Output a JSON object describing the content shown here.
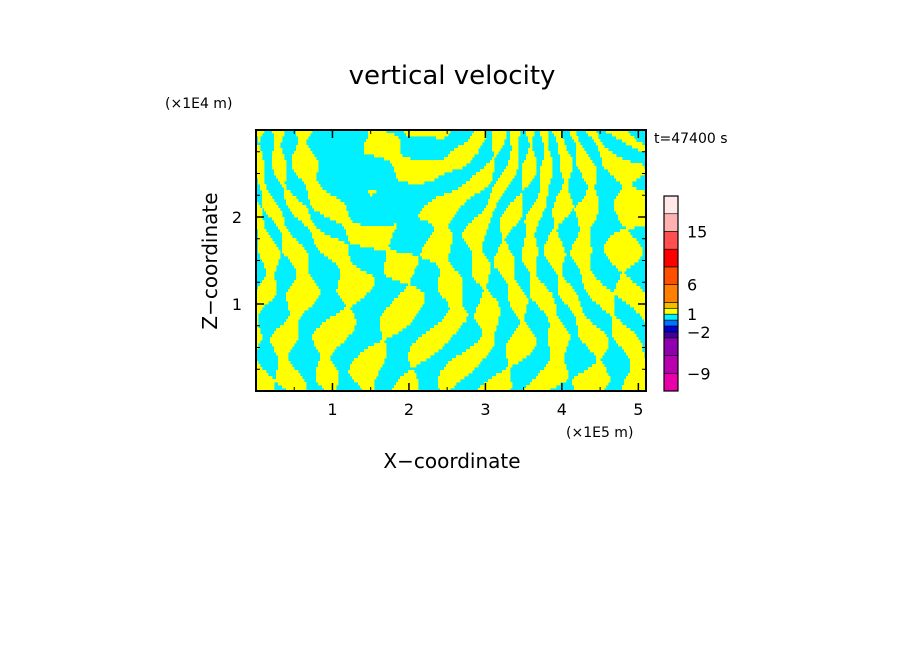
{
  "chart_data": {
    "type": "heatmap",
    "title": "vertical velocity",
    "xlabel": "X−coordinate",
    "ylabel": "Z−coordinate",
    "x_unit_label": "(×1E5 m)",
    "y_unit_label": "(×1E4 m)",
    "time_label": "t=47400 s",
    "xlim": [
      0,
      5.1
    ],
    "ylim": [
      0,
      3.0
    ],
    "xticks": [
      1,
      2,
      3,
      4,
      5
    ],
    "yticks": [
      1,
      2
    ],
    "xtick_labels": [
      "1",
      "2",
      "3",
      "4",
      "5"
    ],
    "ytick_labels": [
      "1",
      "2"
    ],
    "field_colors": {
      "positive": "#ffff00",
      "negative": "#00f0ff"
    },
    "colorbar": {
      "levels": [
        -12,
        -9,
        -6,
        -3,
        -2,
        -1,
        0,
        1,
        2,
        3,
        6,
        9,
        12,
        15,
        18,
        21
      ],
      "colors": [
        "#e800a8",
        "#b800b0",
        "#9000b0",
        "#4000a0",
        "#0000d0",
        "#0070ff",
        "#00f0ff",
        "#ffff00",
        "#f0c000",
        "#ff8000",
        "#ff5000",
        "#ff0000",
        "#ff5050",
        "#ffb0b0",
        "#ffe8e8"
      ],
      "tick_values": [
        15,
        6,
        1,
        -2,
        -9
      ],
      "tick_labels": [
        "15",
        "6",
        "1",
        "−2",
        "−9"
      ]
    }
  }
}
